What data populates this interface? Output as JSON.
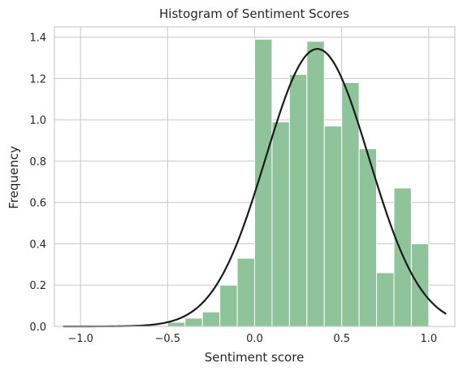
{
  "chart_data": {
    "type": "bar",
    "title": "Histogram of Sentiment Scores",
    "xlabel": "Sentiment score",
    "ylabel": "Frequency",
    "xlim": [
      -1.15,
      1.15
    ],
    "ylim": [
      0,
      1.45
    ],
    "xticks": [
      -1.0,
      -0.5,
      0.0,
      0.5,
      1.0
    ],
    "xtick_labels": [
      "−1.0",
      "−0.5",
      "0.0",
      "0.5",
      "1.0"
    ],
    "yticks": [
      0.0,
      0.2,
      0.4,
      0.6,
      0.8,
      1.0,
      1.2,
      1.4
    ],
    "ytick_labels": [
      "0.0",
      "0.2",
      "0.4",
      "0.6",
      "0.8",
      "1.0",
      "1.2",
      "1.4"
    ],
    "grid": true,
    "bins": [
      {
        "start": -0.5,
        "end": -0.4,
        "value": 0.02
      },
      {
        "start": -0.4,
        "end": -0.3,
        "value": 0.04
      },
      {
        "start": -0.3,
        "end": -0.2,
        "value": 0.07
      },
      {
        "start": -0.2,
        "end": -0.1,
        "value": 0.2
      },
      {
        "start": -0.1,
        "end": 0.0,
        "value": 0.33
      },
      {
        "start": 0.0,
        "end": 0.1,
        "value": 1.39
      },
      {
        "start": 0.1,
        "end": 0.2,
        "value": 0.99
      },
      {
        "start": 0.2,
        "end": 0.3,
        "value": 1.22
      },
      {
        "start": 0.3,
        "end": 0.4,
        "value": 1.38
      },
      {
        "start": 0.4,
        "end": 0.5,
        "value": 0.97
      },
      {
        "start": 0.5,
        "end": 0.6,
        "value": 1.18
      },
      {
        "start": 0.6,
        "end": 0.7,
        "value": 0.86
      },
      {
        "start": 0.7,
        "end": 0.8,
        "value": 0.26
      },
      {
        "start": 0.8,
        "end": 0.9,
        "value": 0.67
      },
      {
        "start": 0.9,
        "end": 1.0,
        "value": 0.4
      }
    ],
    "density_curve": {
      "kind": "normal",
      "mean": 0.36,
      "std": 0.297,
      "x_range": [
        -1.1,
        1.1
      ]
    },
    "colors": {
      "bar_fill": "#8fc49a",
      "bar_edge": "#ffffff",
      "curve": "#1a1a1a",
      "grid": "#cccccc",
      "axes_edge": "#cccccc",
      "text": "#262626"
    }
  }
}
